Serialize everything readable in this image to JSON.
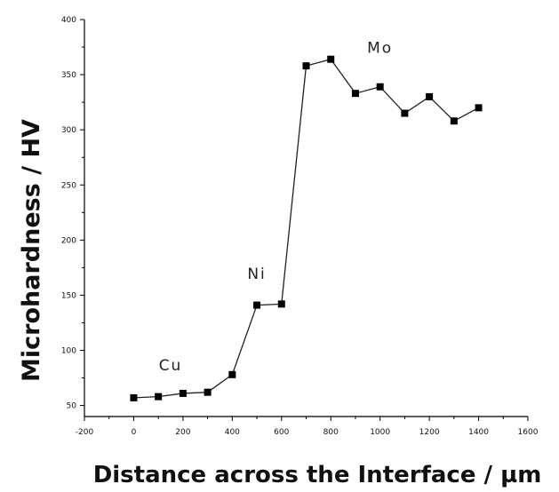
{
  "chart_data": {
    "type": "line",
    "xlabel": "Distance across the Interface / µm",
    "ylabel": "Microhardness / HV",
    "xlim": [
      -200,
      1600
    ],
    "ylim": [
      40,
      400
    ],
    "x_ticks": [
      -200,
      0,
      200,
      400,
      600,
      800,
      1000,
      1200,
      1400,
      1600
    ],
    "y_ticks": [
      50,
      100,
      150,
      200,
      250,
      300,
      350,
      400
    ],
    "x_tick_labels": [
      "-200",
      "0",
      "200",
      "400",
      "600",
      "800",
      "1000",
      "1200",
      "1400",
      "1600"
    ],
    "y_tick_labels": [
      "50",
      "100",
      "150",
      "200",
      "250",
      "300",
      "350",
      "400"
    ],
    "grid": false,
    "series": [
      {
        "x": [
          0,
          100,
          200,
          300,
          400,
          500,
          600,
          700,
          800,
          900,
          1000,
          1100,
          1200,
          1300,
          1400
        ],
        "values": [
          57,
          58,
          61,
          62,
          78,
          141,
          142,
          358,
          364,
          333,
          339,
          315,
          330,
          308,
          320
        ],
        "marker": "square",
        "color": "#000000"
      }
    ],
    "annotations": [
      {
        "text": "Cu",
        "x": 150,
        "y": 82
      },
      {
        "text": "Ni",
        "x": 500,
        "y": 165
      },
      {
        "text": "Mo",
        "x": 1000,
        "y": 370
      }
    ]
  }
}
